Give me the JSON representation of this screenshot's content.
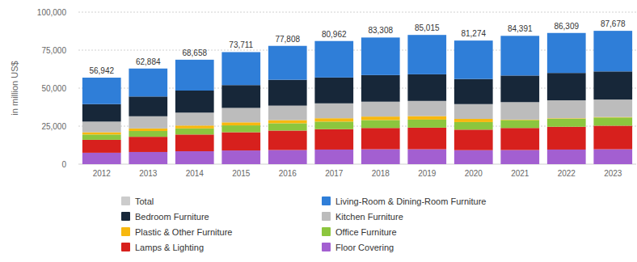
{
  "chart_data": {
    "type": "bar",
    "stacked": true,
    "data_labels": true,
    "grid": true,
    "y_label": "in million US$",
    "categories": [
      "2012",
      "2013",
      "2014",
      "2015",
      "2016",
      "2017",
      "2018",
      "2019",
      "2020",
      "2021",
      "2022",
      "2023"
    ],
    "ylim": [
      0,
      100000
    ],
    "yticks": [
      0,
      {
        "value": 25000,
        "label": "25,000"
      },
      {
        "value": 50000,
        "label": "50,000"
      },
      {
        "value": 75000,
        "label": "75,000"
      },
      {
        "value": 100000,
        "label": "100,000"
      }
    ],
    "series": [
      {
        "name": "Total",
        "type": "label",
        "color": "#cccccc",
        "values": [
          56942,
          62884,
          68658,
          73711,
          77808,
          80962,
          83308,
          85015,
          81274,
          84391,
          86309,
          87678
        ],
        "value_labels": [
          "56,942",
          "62,884",
          "68,658",
          "73,711",
          "77,808",
          "80,962",
          "83,308",
          "85,015",
          "81,274",
          "84,391",
          "86,309",
          "87,678"
        ]
      },
      {
        "name": "Living-Room & Dining-Room Furniture",
        "color": "#2f7ed8",
        "values": [
          17400,
          18400,
          20300,
          21700,
          22300,
          24000,
          24700,
          25900,
          25300,
          26100,
          26300,
          26700
        ]
      },
      {
        "name": "Bedroom Furniture",
        "color": "#172739",
        "values": [
          11500,
          13000,
          14500,
          15000,
          17000,
          17000,
          17500,
          17500,
          16500,
          17500,
          18000,
          18500
        ]
      },
      {
        "name": "Kitchen Furniture",
        "color": "#bcbcbc",
        "values": [
          7000,
          8000,
          8500,
          9500,
          9500,
          9800,
          9800,
          10000,
          9700,
          11500,
          11800,
          11500
        ]
      },
      {
        "name": "Plastic & Other Furniture",
        "color": "#f7b80f",
        "values": [
          1500,
          1700,
          1900,
          2000,
          2100,
          2200,
          2300,
          2300,
          2100,
          300,
          300,
          300
        ]
      },
      {
        "name": "Office Furniture",
        "color": "#8cc63e",
        "values": [
          3500,
          3800,
          4000,
          4500,
          4800,
          5000,
          5200,
          5300,
          5000,
          5200,
          5300,
          5400
        ]
      },
      {
        "name": "Lamps & Lighting",
        "color": "#d7201d",
        "values": [
          8500,
          10000,
          11000,
          12000,
          12800,
          13400,
          14000,
          14200,
          13500,
          14500,
          15000,
          15500
        ]
      },
      {
        "name": "Floor Covering",
        "color": "#a35fd1",
        "values": [
          7500,
          8000,
          8500,
          9000,
          9300,
          9600,
          9800,
          9800,
          9200,
          9300,
          9600,
          9800
        ]
      }
    ]
  }
}
